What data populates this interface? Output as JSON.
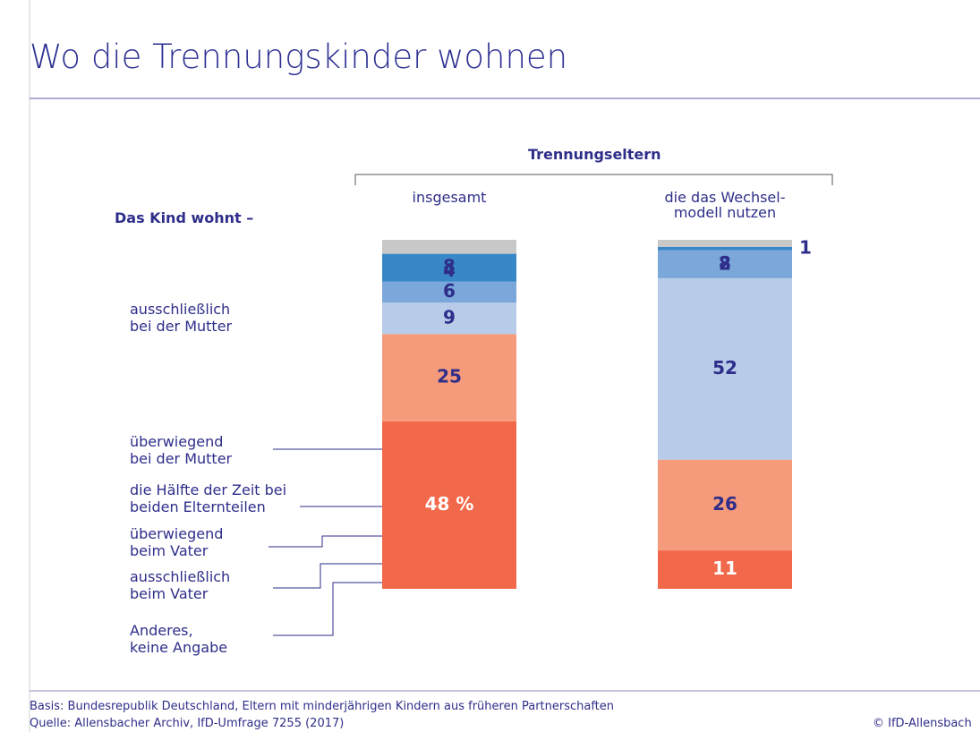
{
  "chart_data": {
    "type": "stacked_bar",
    "title": "Wo die Trennungskinder wohnen",
    "group_label": "Trennungseltern",
    "y_heading": "Das Kind wohnt –",
    "categories": [
      "insgesamt",
      "die das Wechsel-\nmodell nutzen"
    ],
    "ylim": [
      0,
      100
    ],
    "series": [
      {
        "name": "ausschließlich\nbei der Mutter",
        "color": "#f2684a",
        "values": [
          48,
          11
        ],
        "value_labels": [
          "48 %",
          "11"
        ]
      },
      {
        "name": "überwiegend\nbei der Mutter",
        "color": "#f59a7a",
        "values": [
          25,
          26
        ]
      },
      {
        "name": "die Hälfte der Zeit bei\nbeiden Elternteilen",
        "color": "#b8cce9",
        "values": [
          9,
          52
        ]
      },
      {
        "name": "überwiegend\nbeim Vater",
        "color": "#7ba7da",
        "values": [
          6,
          8
        ]
      },
      {
        "name": "ausschließlich\nbeim Vater",
        "color": "#3a87c8",
        "values": [
          8,
          1
        ]
      },
      {
        "name": "Anderes,\nkeine Angabe",
        "color": "#c8c8c8",
        "values": [
          4,
          2
        ]
      }
    ],
    "notes": "Basis: Bundesrepublik Deutschland, Eltern mit minderjährigen Kindern aus früheren Partnerschaften",
    "source": "Quelle: Allensbacher Archiv, IfD-Umfrage 7255 (2017)",
    "credit": "© IfD-Allensbach"
  }
}
